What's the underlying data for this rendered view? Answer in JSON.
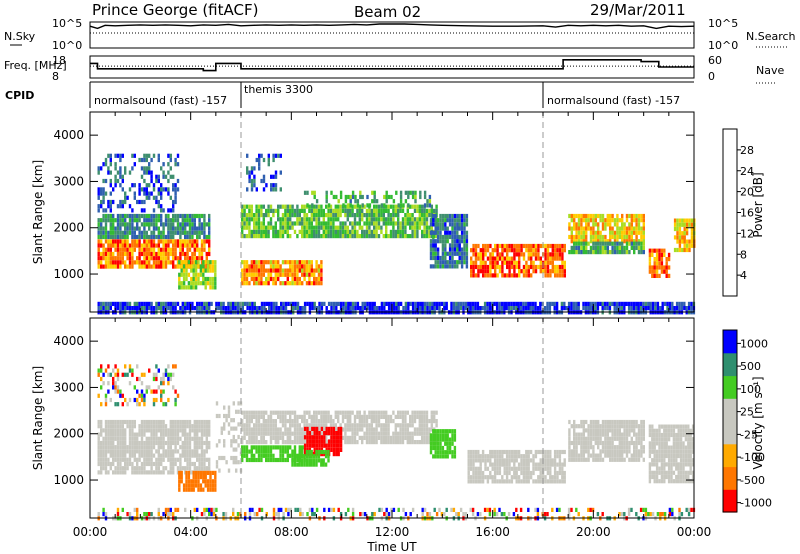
{
  "header": {
    "station": "Prince George (fitACF)",
    "beam": "Beam 02",
    "date": "29/Mar/2011"
  },
  "colors": {
    "power_scale": [
      "#0000ff",
      "#2f5fb0",
      "#3f8f6f",
      "#33bb33",
      "#aadd22",
      "#ffcc00",
      "#ff7700",
      "#ff0000"
    ],
    "velocity_scale": [
      "#ff0000",
      "#ff7700",
      "#ffaa00",
      "#c8c8c0",
      "#c8c8c0",
      "#44cc22",
      "#2f8f6f",
      "#0000ff"
    ],
    "ground_scatter": "#c8c8c0"
  },
  "chart_data": [
    {
      "type": "line",
      "name": "nsky-panel",
      "ylabel": "N.Sky",
      "ylabel2": "N.Search",
      "yticks": [
        "10^5",
        "10^0"
      ],
      "yticks2": [
        "10^5",
        "10^0"
      ],
      "ylim": [
        0,
        5
      ],
      "x_hours": [
        0,
        0.3,
        0.6,
        1,
        1.5,
        2,
        2.5,
        3,
        3.5,
        4,
        4.5,
        5,
        5.5,
        6,
        6.5,
        7,
        7.5,
        8,
        8.5,
        9,
        9.5,
        10,
        10.5,
        11,
        11.5,
        12,
        12.5,
        13,
        13.5,
        14,
        15,
        16,
        17,
        18,
        18.5,
        19,
        19.5,
        20,
        20.5,
        21,
        21.5,
        22,
        22.5,
        23,
        23.5,
        24
      ],
      "values": [
        4.5,
        4.0,
        4.7,
        4.6,
        4.7,
        4.8,
        4.7,
        4.8,
        4.7,
        4.6,
        4.8,
        4.7,
        4.9,
        4.6,
        4.7,
        4.8,
        4.7,
        4.8,
        4.7,
        4.8,
        4.7,
        4.8,
        4.9,
        4.8,
        5.0,
        5.0,
        5.0,
        4.9,
        4.8,
        4.7,
        4.6,
        4.5,
        4.5,
        4.6,
        4.3,
        4.7,
        4.6,
        4.7,
        4.6,
        4.7,
        4.5,
        4.6,
        4.0,
        4.5,
        4.4,
        4.5
      ]
    },
    {
      "type": "line",
      "name": "freq-panel",
      "ylabel": "Freq. [MHz]",
      "ylabel2": "Nave",
      "yticks": [
        "18",
        "8"
      ],
      "yticks2": [
        "60",
        "0"
      ],
      "ylim": [
        8,
        18
      ],
      "x_hours": [
        0,
        0.3,
        0.3,
        4.5,
        4.5,
        5.0,
        5.0,
        6.0,
        6.0,
        18.8,
        18.8,
        21.9,
        21.9,
        22.6,
        22.6,
        24
      ],
      "values": [
        15,
        15,
        12,
        12,
        11,
        11,
        15,
        15,
        12,
        12,
        17,
        17,
        16,
        16,
        13,
        13
      ],
      "nave_level": 13.5
    },
    {
      "type": "table",
      "name": "cpid-bar",
      "label": "CPID",
      "segments": [
        {
          "label": "normalsound (fast) -157",
          "start_h": 0.0
        },
        {
          "label": "themis 3300",
          "start_h": 6.0
        },
        {
          "label": "normalsound (fast) -157",
          "start_h": 18.0
        }
      ]
    },
    {
      "type": "heatmap",
      "name": "power-panel",
      "ylabel": "Slant Range [km]",
      "ylim": [
        180,
        4500
      ],
      "yticks": [
        1000,
        2000,
        3000,
        4000
      ],
      "xlim": [
        0,
        24
      ],
      "colorbar_label": "Power [dB]",
      "colorbar_ticks": [
        "4",
        "8",
        "12",
        "16",
        "20",
        "24",
        "28"
      ],
      "regions": [
        {
          "h0": 0.3,
          "h1": 4.7,
          "r0": 1150,
          "r1": 1750,
          "v": 26
        },
        {
          "h0": 0.3,
          "h1": 4.7,
          "r0": 1800,
          "r1": 2300,
          "v": 10
        },
        {
          "h0": 0.3,
          "h1": 3.5,
          "r0": 2400,
          "r1": 3600,
          "v": 6
        },
        {
          "h0": 3.5,
          "h1": 5.0,
          "r0": 750,
          "r1": 1300,
          "v": 18
        },
        {
          "h0": 6.0,
          "h1": 9.2,
          "r0": 800,
          "r1": 1300,
          "v": 24
        },
        {
          "h0": 6.0,
          "h1": 13.8,
          "r0": 1800,
          "r1": 2500,
          "v": 14
        },
        {
          "h0": 8.5,
          "h1": 13.5,
          "r0": 2500,
          "r1": 2800,
          "v": 12
        },
        {
          "h0": 6.2,
          "h1": 7.6,
          "r0": 2800,
          "r1": 3600,
          "v": 6
        },
        {
          "h0": 13.5,
          "h1": 15.0,
          "r0": 1200,
          "r1": 2300,
          "v": 8
        },
        {
          "h0": 15.1,
          "h1": 18.9,
          "r0": 1000,
          "r1": 1650,
          "v": 27
        },
        {
          "h0": 19.0,
          "h1": 22.0,
          "r0": 1750,
          "r1": 2300,
          "v": 22
        },
        {
          "h0": 19.0,
          "h1": 22.0,
          "r0": 1450,
          "r1": 1700,
          "v": 12
        },
        {
          "h0": 22.2,
          "h1": 23.0,
          "r0": 1000,
          "r1": 1550,
          "v": 27
        },
        {
          "h0": 23.2,
          "h1": 24.0,
          "r0": 1500,
          "r1": 2200,
          "v": 22
        },
        {
          "h0": 0.3,
          "h1": 24.0,
          "r0": 200,
          "r1": 400,
          "v": 4
        }
      ]
    },
    {
      "type": "heatmap",
      "name": "velocity-panel",
      "ylabel": "Slant Range [km]",
      "xlabel": "Time UT",
      "ylim": [
        180,
        4500
      ],
      "yticks": [
        1000,
        2000,
        3000,
        4000
      ],
      "xlim": [
        0,
        24
      ],
      "xticks": [
        "00:00",
        "04:00",
        "08:00",
        "12:00",
        "16:00",
        "20:00",
        "00:00"
      ],
      "colorbar_label": "Velocity [m s⁻¹]",
      "colorbar_ticks": [
        "1000",
        "500",
        "100",
        "25",
        "-25",
        "-100",
        "-500",
        "-1000"
      ],
      "regions": [
        {
          "h0": 0.3,
          "h1": 4.7,
          "r0": 1150,
          "r1": 2300,
          "v": "ground"
        },
        {
          "h0": 3.5,
          "h1": 5.0,
          "r0": 750,
          "r1": 1200,
          "v": -300
        },
        {
          "h0": 5.0,
          "h1": 6.0,
          "r0": 1200,
          "r1": 2700,
          "v": "ground"
        },
        {
          "h0": 6.0,
          "h1": 8.5,
          "r0": 1400,
          "r1": 1750,
          "v": 100
        },
        {
          "h0": 6.0,
          "h1": 13.8,
          "r0": 1800,
          "r1": 2500,
          "v": "ground"
        },
        {
          "h0": 8.5,
          "h1": 10.0,
          "r0": 1550,
          "r1": 2150,
          "v": -800
        },
        {
          "h0": 8.0,
          "h1": 9.5,
          "r0": 1300,
          "r1": 1650,
          "v": 150
        },
        {
          "h0": 13.5,
          "h1": 14.5,
          "r0": 1550,
          "r1": 2100,
          "v": 120
        },
        {
          "h0": 15.0,
          "h1": 18.9,
          "r0": 1000,
          "r1": 1650,
          "v": "ground"
        },
        {
          "h0": 19.0,
          "h1": 22.0,
          "r0": 1450,
          "r1": 2300,
          "v": "ground"
        },
        {
          "h0": 22.2,
          "h1": 24.0,
          "r0": 1000,
          "r1": 2200,
          "v": "ground"
        },
        {
          "h0": 0.3,
          "h1": 3.5,
          "r0": 2600,
          "r1": 3500,
          "v": "mixed"
        },
        {
          "h0": 0.3,
          "h1": 24.0,
          "r0": 200,
          "r1": 400,
          "v": "mixed"
        }
      ]
    }
  ]
}
